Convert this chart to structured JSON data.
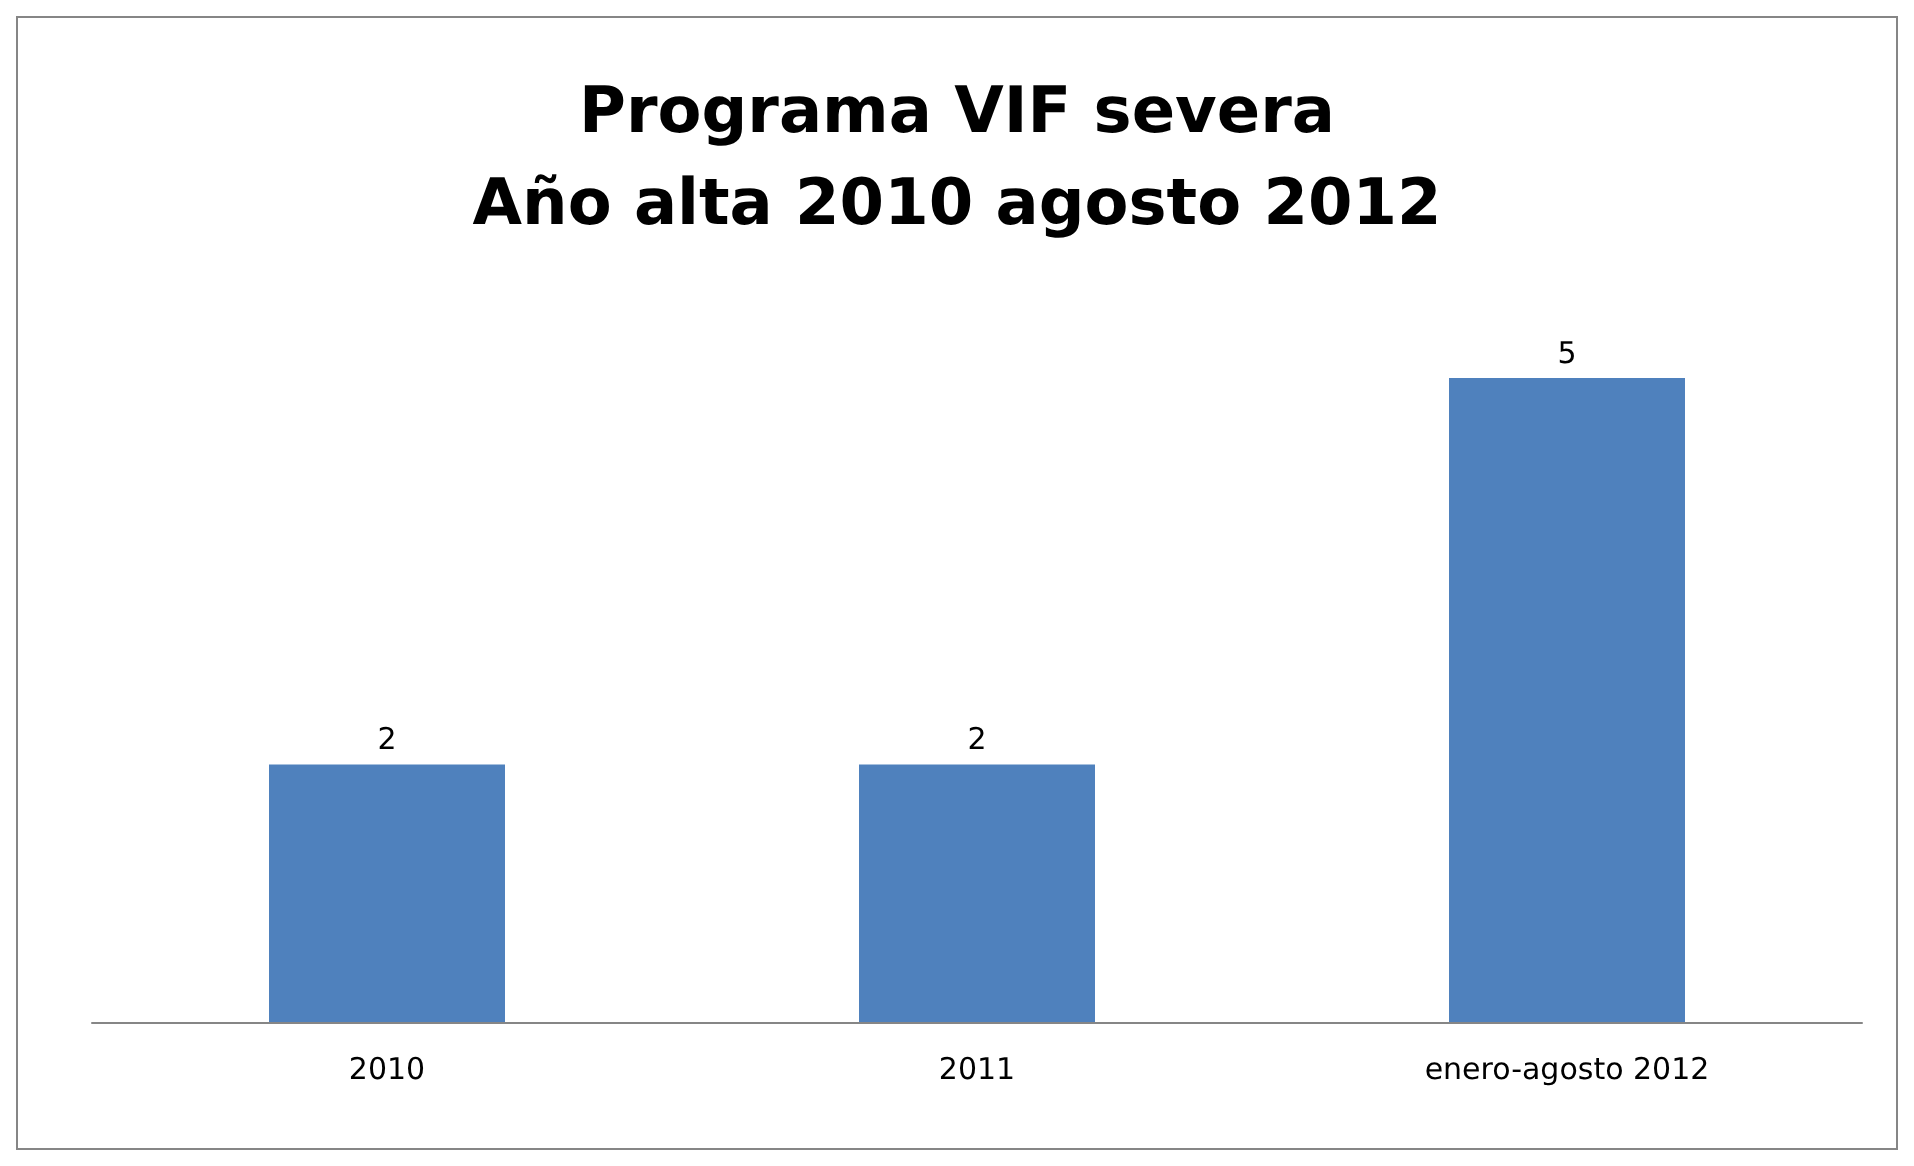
{
  "chart_data": {
    "type": "bar",
    "title": "Programa VIF severa\nAño alta 2010 agosto 2012",
    "categories": [
      "2010",
      "2011",
      "enero-agosto 2012"
    ],
    "values": [
      2,
      2,
      5
    ],
    "color": "#4f81bd",
    "data_labels": true
  }
}
